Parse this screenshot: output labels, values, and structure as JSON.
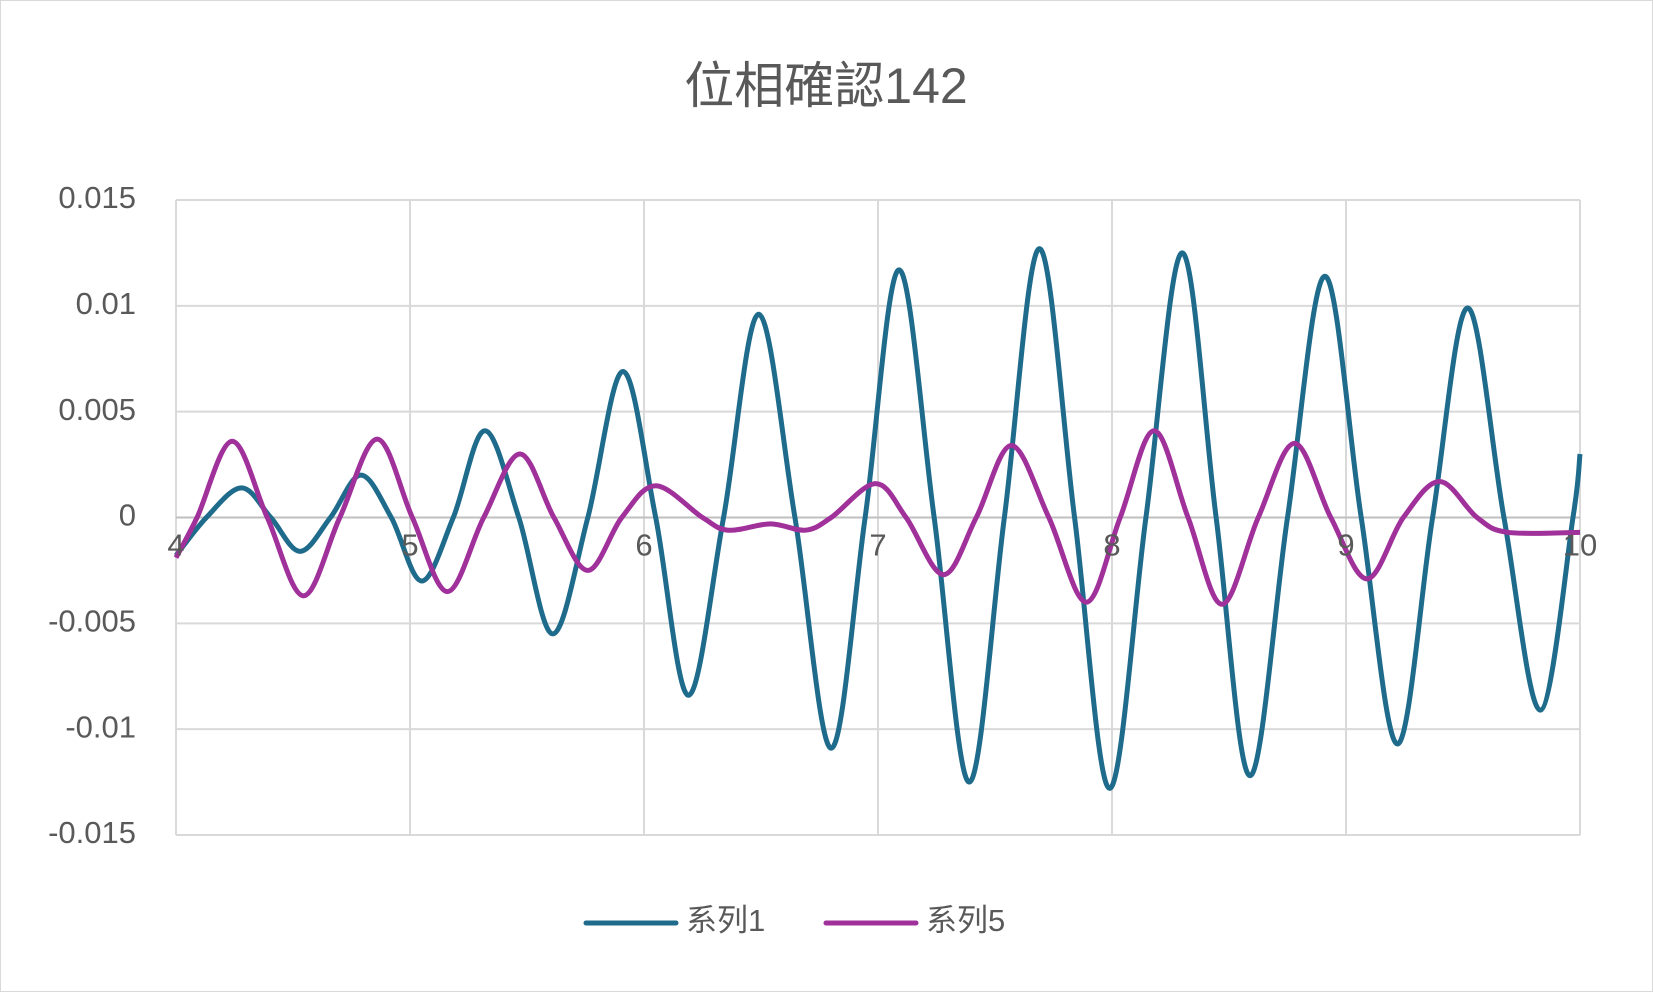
{
  "chart_data": {
    "type": "line",
    "title": "位相確認142",
    "xlim": [
      4,
      10
    ],
    "xticks": [
      4,
      5,
      6,
      7,
      8,
      9,
      10
    ],
    "ylim": [
      -0.015,
      0.015
    ],
    "yticks": [
      -0.015,
      -0.01,
      -0.005,
      0,
      0.005,
      0.01,
      0.015
    ],
    "grid": true,
    "legend": "bottom",
    "series": [
      {
        "name": "系列1",
        "color": "#1f6b8c",
        "x": [
          4.0,
          4.13,
          4.28,
          4.405,
          4.53,
          4.66,
          4.79,
          4.92,
          5.05,
          5.185,
          5.32,
          5.465,
          5.61,
          5.76,
          5.91,
          6.05,
          6.19,
          6.34,
          6.49,
          6.645,
          6.8,
          6.945,
          7.09,
          7.24,
          7.39,
          7.54,
          7.69,
          7.84,
          7.99,
          8.145,
          8.3,
          8.445,
          8.59,
          8.75,
          8.91,
          9.065,
          9.22,
          9.37,
          9.52,
          9.675,
          9.83,
          9.97,
          10.0
        ],
        "values": [
          -0.0018,
          0,
          0.0014,
          0,
          -0.0016,
          0,
          0.002,
          0,
          -0.003,
          0,
          0.0041,
          0,
          -0.0055,
          0,
          0.0069,
          0,
          -0.0084,
          0,
          0.0096,
          0,
          -0.0109,
          0,
          0.0117,
          0,
          -0.0125,
          0,
          0.0127,
          0,
          -0.0128,
          0,
          0.0125,
          0,
          -0.0122,
          0,
          0.0114,
          0,
          -0.0107,
          0,
          0.0099,
          0,
          -0.0091,
          0,
          0.003
        ]
      },
      {
        "name": "系列5",
        "color": "#a0309a",
        "x": [
          4.0,
          4.09,
          4.24,
          4.39,
          4.545,
          4.7,
          4.86,
          5.01,
          5.16,
          5.315,
          5.47,
          5.615,
          5.76,
          5.905,
          6.05,
          6.25,
          6.36,
          6.54,
          6.69,
          6.8,
          6.99,
          7.12,
          7.28,
          7.42,
          7.57,
          7.73,
          7.89,
          8.035,
          8.18,
          8.325,
          8.47,
          8.625,
          8.78,
          8.935,
          9.09,
          9.245,
          9.4,
          9.56,
          9.69,
          10.0
        ],
        "values": [
          -0.0019,
          0,
          0.0036,
          0,
          -0.0037,
          0,
          0.0037,
          0,
          -0.0035,
          0,
          0.003,
          0,
          -0.0025,
          0,
          0.0015,
          0,
          -0.0006,
          -0.0003,
          -0.0006,
          0,
          0.0016,
          0,
          -0.0027,
          0,
          0.0034,
          0,
          -0.004,
          0,
          0.0041,
          0,
          -0.0041,
          0,
          0.0035,
          0,
          -0.0029,
          0,
          0.0017,
          0,
          -0.0007,
          -0.0007
        ]
      }
    ]
  }
}
